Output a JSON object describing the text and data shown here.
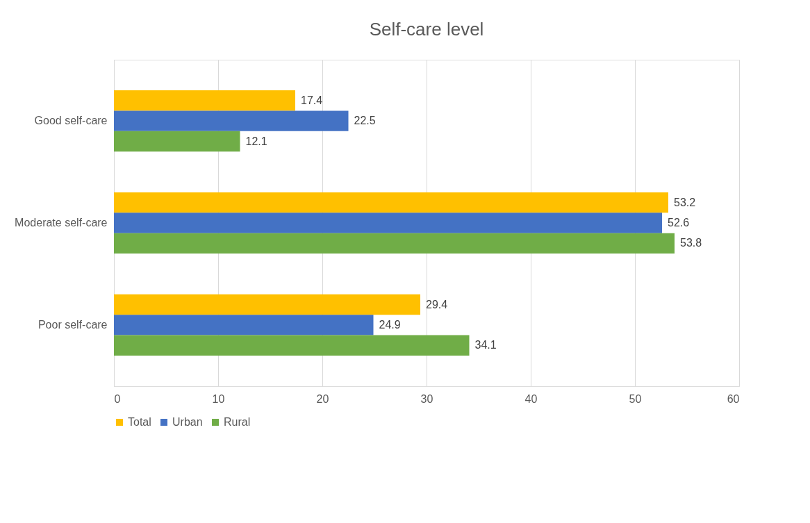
{
  "chart_data": {
    "type": "bar",
    "orientation": "horizontal",
    "title": "Self-care level",
    "categories": [
      "Good self-care",
      "Moderate self-care",
      "Poor self-care"
    ],
    "series": [
      {
        "name": "Total",
        "color": "#ffc000",
        "values": [
          17.4,
          53.2,
          29.4
        ]
      },
      {
        "name": "Urban",
        "color": "#4472c4",
        "values": [
          22.5,
          52.6,
          24.9
        ]
      },
      {
        "name": "Rural",
        "color": "#70ad47",
        "values": [
          12.1,
          53.8,
          34.1
        ]
      }
    ],
    "xlim": [
      0,
      60
    ],
    "xticks": [
      0,
      10,
      20,
      30,
      40,
      50,
      60
    ],
    "grid": "x",
    "legend": "bottom",
    "data_labels": true
  }
}
